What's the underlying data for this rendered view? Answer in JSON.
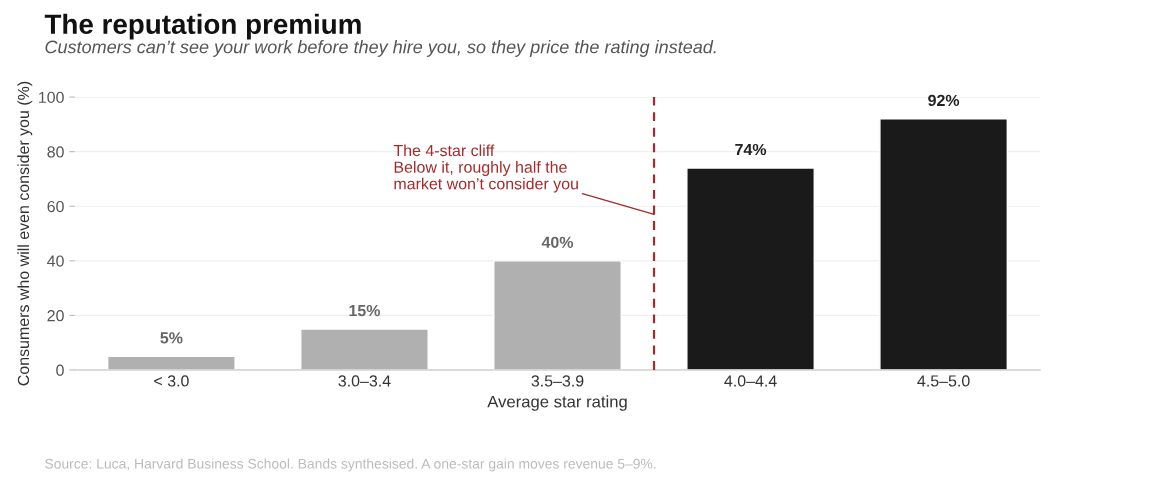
{
  "chart_data": {
    "type": "bar",
    "title": "The reputation premium",
    "subtitle": "Customers can’t see your work before they hire you, so they price the rating instead.",
    "xlabel": "Average star rating",
    "ylabel": "Consumers who will even consider you (%)",
    "categories": [
      "< 3.0",
      "3.0–3.4",
      "3.5–3.9",
      "4.0–4.4",
      "4.5–5.0"
    ],
    "values": [
      5,
      15,
      40,
      74,
      92
    ],
    "colors": [
      "#b0b0b0",
      "#b0b0b0",
      "#b0b0b0",
      "#1a1a1a",
      "#1a1a1a"
    ],
    "value_labels": [
      "5%",
      "15%",
      "40%",
      "74%",
      "92%"
    ],
    "ylim": [
      0,
      100
    ],
    "yticks": [
      0,
      20,
      40,
      60,
      80,
      100
    ],
    "grid": "y",
    "ref_lines": [
      {
        "axis": "x",
        "value": "4.0–4.4",
        "label": "The 4-star cliff\nBelow it, roughly half the\nmarket won’t consider you",
        "color": "#a52a2a",
        "line_style": "dashed"
      }
    ],
    "annotations": [
      "Source: Luca, Harvard Business School. Bands synthesised. A one-star gain moves revenue 5–9%."
    ]
  }
}
